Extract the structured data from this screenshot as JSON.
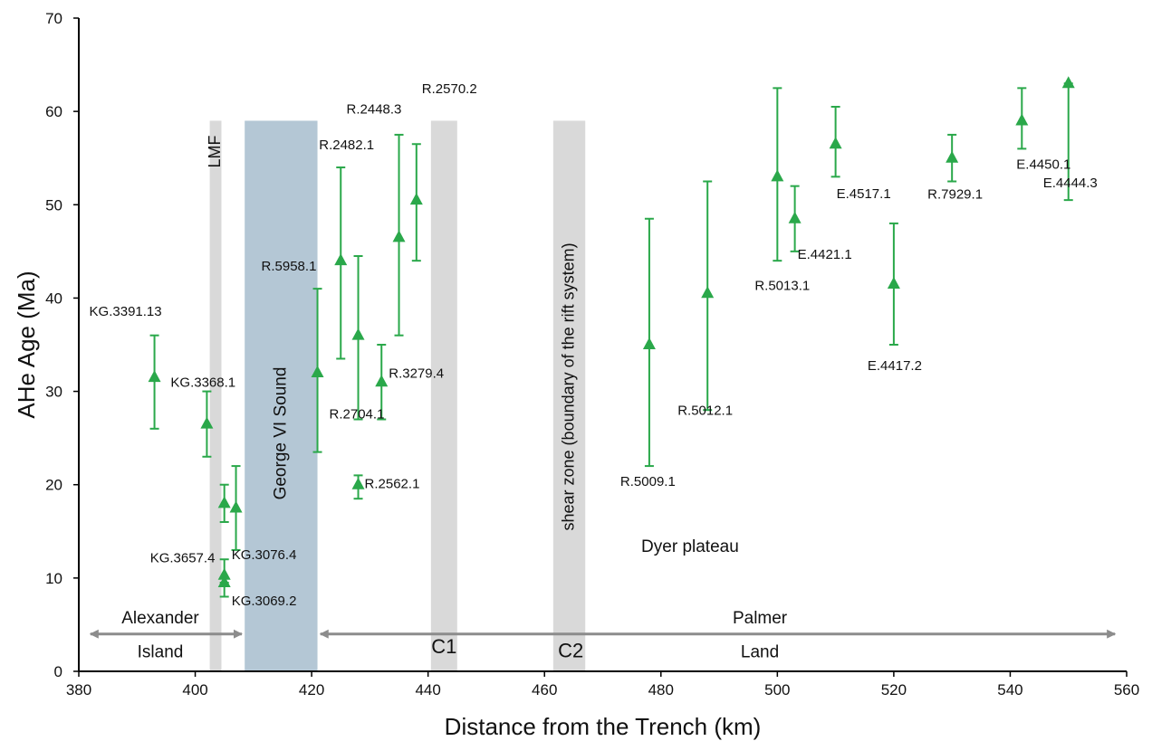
{
  "chart_data": {
    "type": "scatter",
    "xlabel": "Distance from the Trench (km)",
    "ylabel": "AHe Age (Ma)",
    "xlim": [
      380,
      560
    ],
    "ylim": [
      0,
      70
    ],
    "x_ticks": [
      380,
      400,
      420,
      440,
      460,
      480,
      500,
      520,
      540,
      560
    ],
    "y_ticks": [
      0,
      10,
      20,
      30,
      40,
      50,
      60,
      70
    ],
    "grid": false,
    "marker": "triangle",
    "marker_color": "#2aa84a",
    "points": [
      {
        "label": "KG.3391.13",
        "x": 393,
        "y": 31.5,
        "low": 26,
        "high": 36
      },
      {
        "label": "KG.3368.1",
        "x": 402,
        "y": 26.5,
        "low": 23,
        "high": 30
      },
      {
        "label": "KG.3657.4",
        "x": 405,
        "y": 18,
        "low": 16,
        "high": 20
      },
      {
        "label": "",
        "x": 407,
        "y": 17.5,
        "low": 13,
        "high": 22
      },
      {
        "label": "KG.3076.4",
        "x": 405,
        "y": 10.3,
        "low": 9.5,
        "high": 12
      },
      {
        "label": "KG.3069.2",
        "x": 405,
        "y": 9.5,
        "low": 8,
        "high": 10
      },
      {
        "label": "R.5958.1",
        "x": 421,
        "y": 32,
        "low": 23.5,
        "high": 41
      },
      {
        "label": "R.2482.1",
        "x": 425,
        "y": 44,
        "low": 33.5,
        "high": 54
      },
      {
        "label": "R.2704.1",
        "x": 428,
        "y": 36,
        "low": 27,
        "high": 44.5
      },
      {
        "label": "R.2562.1",
        "x": 428,
        "y": 20,
        "low": 18.5,
        "high": 21
      },
      {
        "label": "R.3279.4",
        "x": 432,
        "y": 31,
        "low": 27,
        "high": 35
      },
      {
        "label": "R.2448.3",
        "x": 435,
        "y": 46.5,
        "low": 36,
        "high": 57.5
      },
      {
        "label": "R.2570.2",
        "x": 438,
        "y": 50.5,
        "low": 44,
        "high": 56.5
      },
      {
        "label": "R.5009.1",
        "x": 478,
        "y": 35,
        "low": 22,
        "high": 48.5
      },
      {
        "label": "R.5012.1",
        "x": 488,
        "y": 40.5,
        "low": 28,
        "high": 52.5
      },
      {
        "label": "R.5013.1",
        "x": 500,
        "y": 53,
        "low": 44,
        "high": 62.5
      },
      {
        "label": "E.4421.1",
        "x": 503,
        "y": 48.5,
        "low": 45,
        "high": 52
      },
      {
        "label": "E.4517.1",
        "x": 510,
        "y": 56.5,
        "low": 53,
        "high": 60.5
      },
      {
        "label": "E.4417.2",
        "x": 520,
        "y": 41.5,
        "low": 35,
        "high": 48
      },
      {
        "label": "R.7929.1",
        "x": 530,
        "y": 55,
        "low": 52.5,
        "high": 57.5
      },
      {
        "label": "E.4450.1",
        "x": 542,
        "y": 59,
        "low": 56,
        "high": 62.5
      },
      {
        "label": "E.4444.3",
        "x": 550,
        "y": 63,
        "low": 50.5,
        "high": 63
      }
    ],
    "zones": [
      {
        "label": "LMF",
        "x_start": 402.5,
        "x_end": 404.5,
        "y_top": 59,
        "color": "#d9d9d9"
      },
      {
        "label": "George VI Sound",
        "x_start": 408.5,
        "x_end": 421,
        "y_top": 59,
        "color": "#b4c7d5"
      },
      {
        "label": "C1",
        "x_start": 440.5,
        "x_end": 445,
        "y_top": 59,
        "color": "#d9d9d9"
      },
      {
        "label": "shear zone (boundary of the rift system)",
        "x_start": 461.5,
        "x_end": 467,
        "y_top": 59,
        "color": "#d9d9d9"
      }
    ],
    "annotations": [
      {
        "text": "C2",
        "x": 464.5,
        "y": 2.2
      },
      {
        "text": "Dyer plateau",
        "x": 485,
        "y": 13.5
      },
      {
        "text": "Alexander",
        "x": 394,
        "y": 5.8
      },
      {
        "text": "Island",
        "x": 394,
        "y": 2.2
      },
      {
        "text": "Palmer",
        "x": 497,
        "y": 5.8
      },
      {
        "text": "Land",
        "x": 497,
        "y": 2.2
      }
    ],
    "arrows": [
      {
        "x_from": 382,
        "x_to": 408,
        "y": 4
      },
      {
        "x_from": 421.5,
        "x_to": 558,
        "y": 4
      }
    ]
  }
}
